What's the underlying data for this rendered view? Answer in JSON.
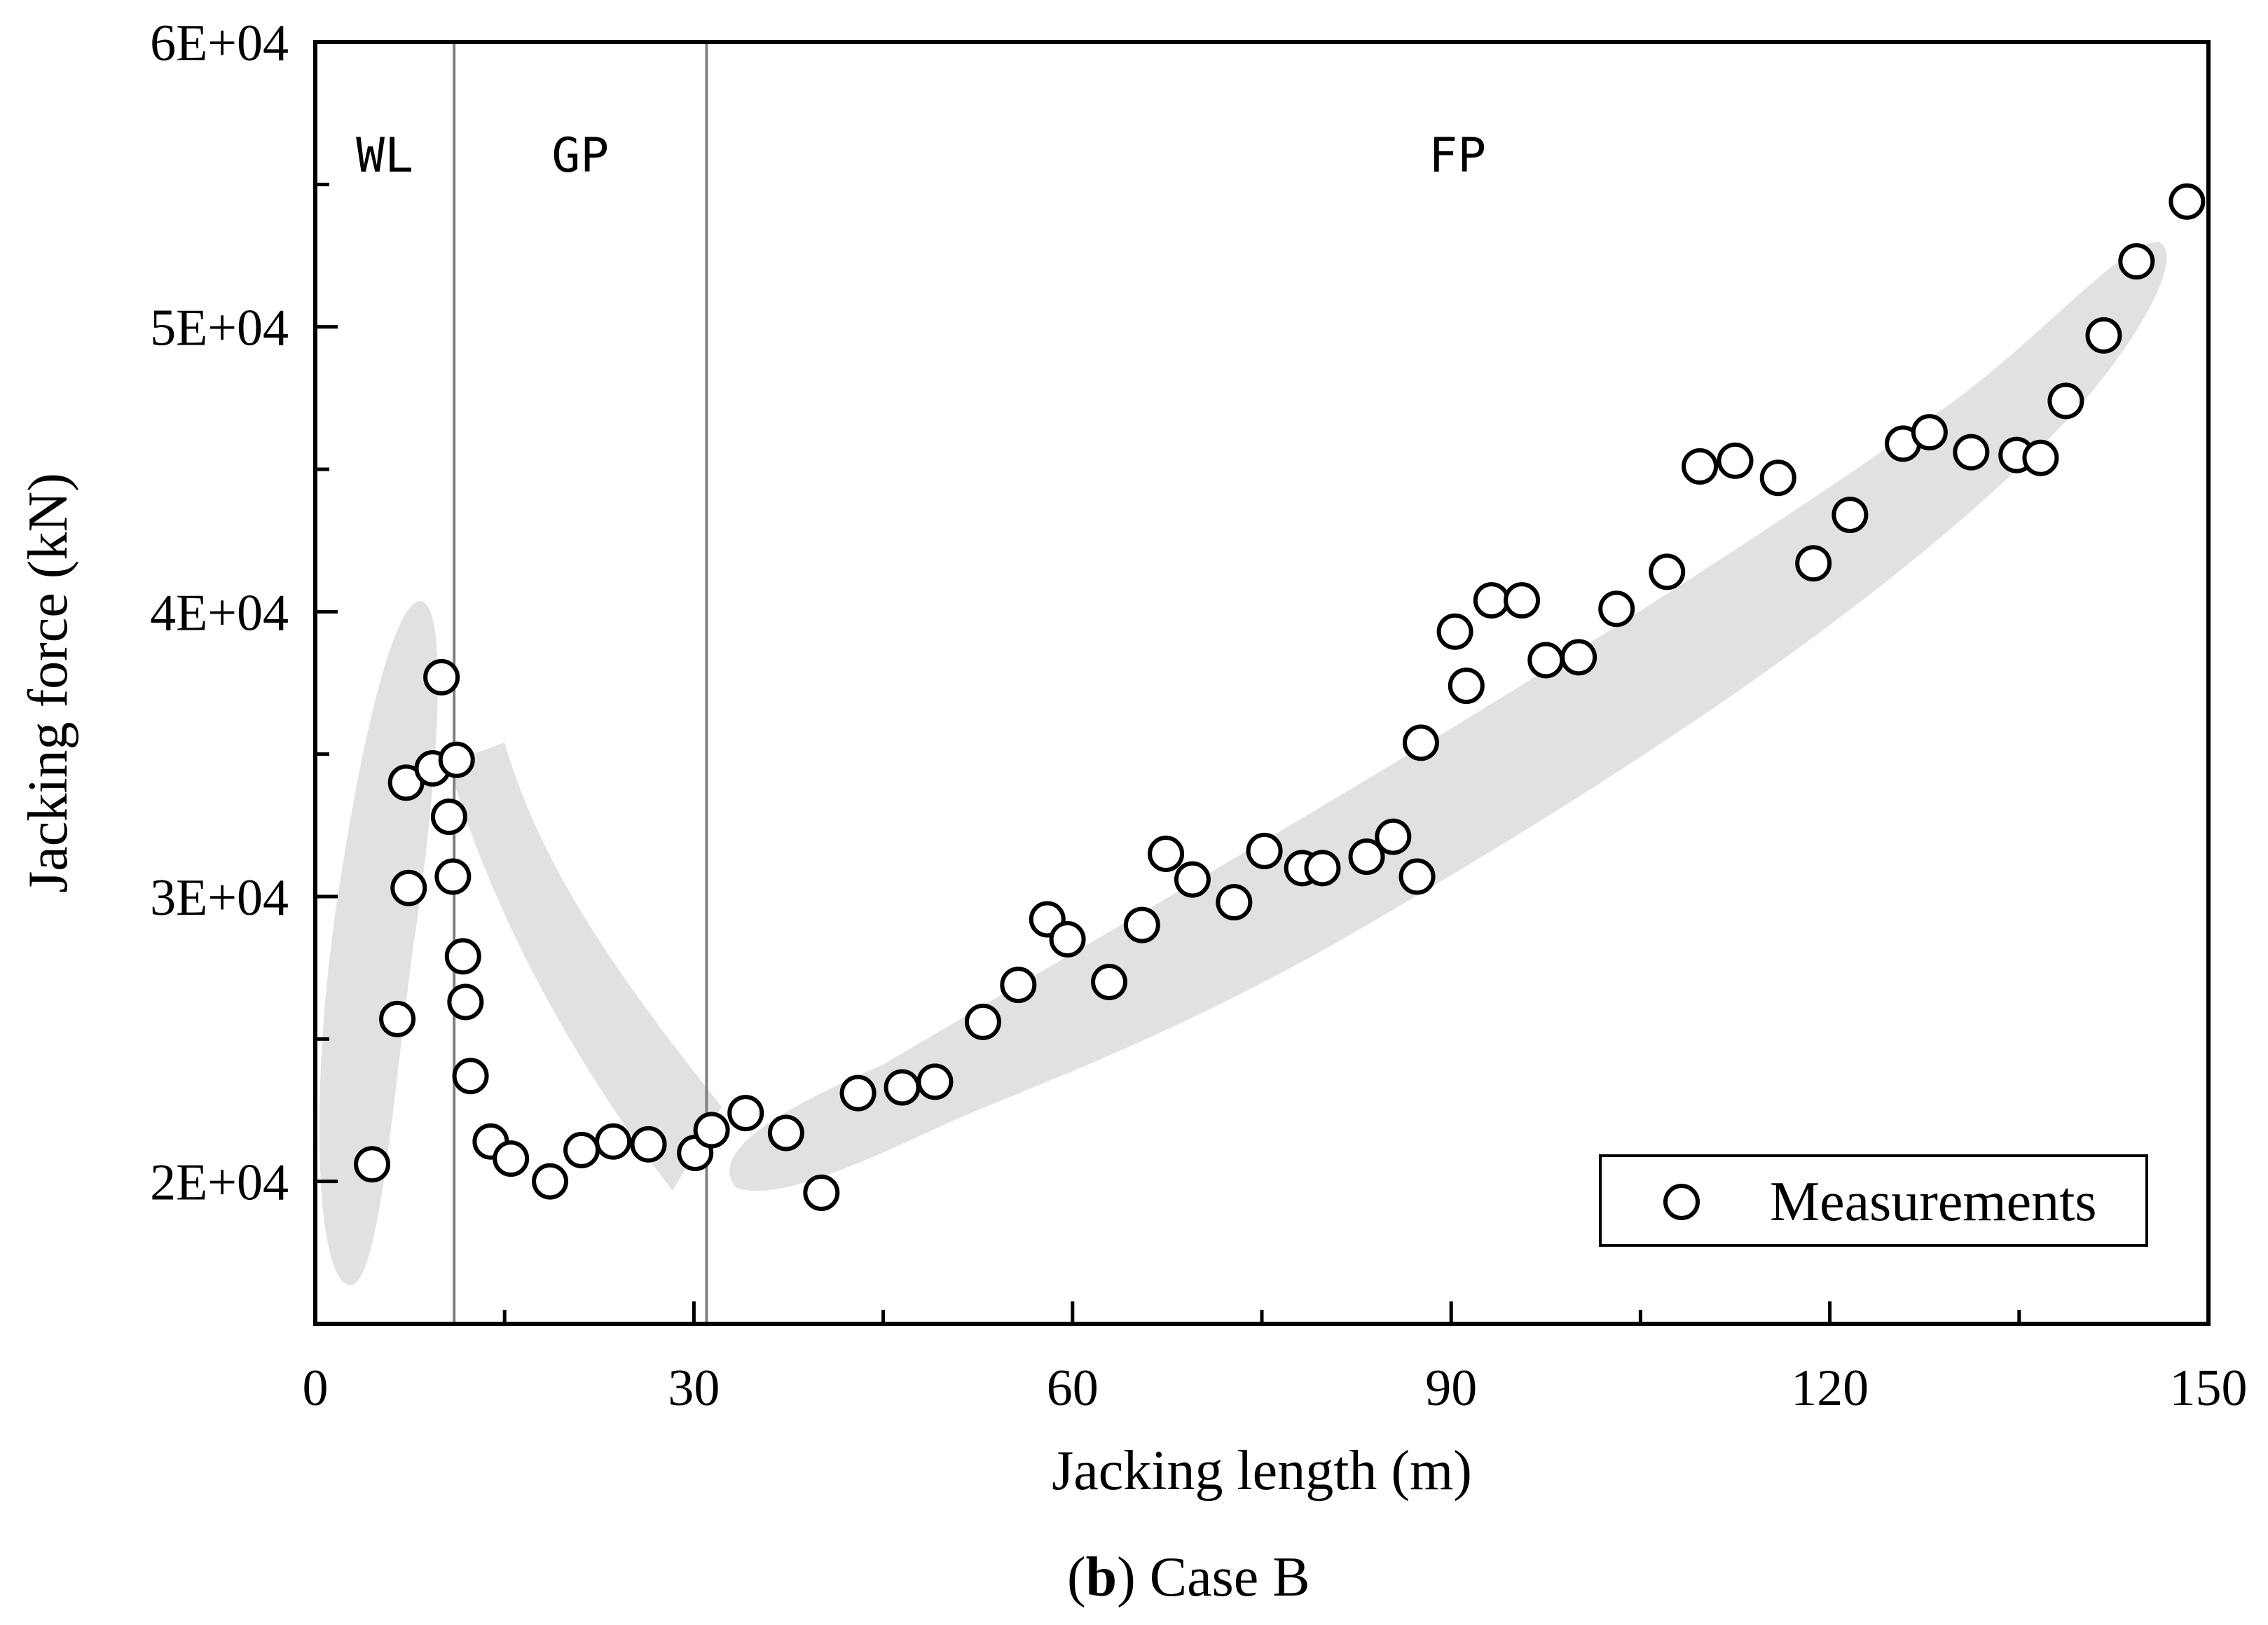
{
  "chart_data": {
    "type": "scatter",
    "title": "",
    "xlabel": "Jacking length (m)",
    "ylabel": "Jacking force (kN)",
    "xlim": [
      0,
      150
    ],
    "ylim": [
      15000,
      60000
    ],
    "x_ticks": [
      0,
      30,
      60,
      90,
      120,
      150
    ],
    "x_tick_labels": [
      "0",
      "30",
      "60",
      "90",
      "120",
      "150"
    ],
    "y_ticks": [
      20000,
      30000,
      40000,
      50000,
      60000
    ],
    "y_tick_labels": [
      "2E+04",
      "3E+04",
      "4E+04",
      "5E+04",
      "6E+04"
    ],
    "grid": false,
    "legend": {
      "position": "bottom-right",
      "entries": [
        "Measurements"
      ]
    },
    "regions": [
      {
        "label": "WL",
        "x_start": 0,
        "x_end": 11
      },
      {
        "label": "GP",
        "x_start": 11,
        "x_end": 31
      },
      {
        "label": "FP",
        "x_start": 31,
        "x_end": 150
      }
    ],
    "region_boundaries": [
      11,
      31
    ],
    "series": [
      {
        "name": "Measurements",
        "points": [
          [
            4.5,
            20600
          ],
          [
            6.5,
            25700
          ],
          [
            7.2,
            34000
          ],
          [
            7.4,
            30300
          ],
          [
            9.3,
            34500
          ],
          [
            10.0,
            37700
          ],
          [
            10.6,
            32800
          ],
          [
            10.9,
            30700
          ],
          [
            11.2,
            34800
          ],
          [
            11.7,
            27900
          ],
          [
            11.9,
            26300
          ],
          [
            12.3,
            23700
          ],
          [
            13.9,
            21400
          ],
          [
            15.5,
            20800
          ],
          [
            18.6,
            20000
          ],
          [
            21.1,
            21100
          ],
          [
            23.6,
            21400
          ],
          [
            26.4,
            21300
          ],
          [
            30.1,
            21000
          ],
          [
            31.4,
            21800
          ],
          [
            34.1,
            22400
          ],
          [
            37.3,
            21700
          ],
          [
            40.1,
            19600
          ],
          [
            43.0,
            23100
          ],
          [
            46.5,
            23300
          ],
          [
            49.1,
            23500
          ],
          [
            52.9,
            25600
          ],
          [
            55.7,
            26900
          ],
          [
            58.0,
            29200
          ],
          [
            59.6,
            28500
          ],
          [
            62.9,
            27000
          ],
          [
            65.5,
            29000
          ],
          [
            67.4,
            31500
          ],
          [
            69.5,
            30600
          ],
          [
            72.8,
            29800
          ],
          [
            75.2,
            31600
          ],
          [
            78.2,
            31000
          ],
          [
            79.8,
            31000
          ],
          [
            83.3,
            31400
          ],
          [
            85.4,
            32100
          ],
          [
            87.3,
            30700
          ],
          [
            87.6,
            35400
          ],
          [
            90.3,
            39300
          ],
          [
            91.2,
            37400
          ],
          [
            93.2,
            40400
          ],
          [
            95.6,
            40400
          ],
          [
            97.5,
            38300
          ],
          [
            100.1,
            38400
          ],
          [
            103.1,
            40100
          ],
          [
            107.1,
            41400
          ],
          [
            109.7,
            45100
          ],
          [
            112.5,
            45300
          ],
          [
            115.9,
            44700
          ],
          [
            118.7,
            41700
          ],
          [
            121.6,
            43400
          ],
          [
            125.8,
            45900
          ],
          [
            127.9,
            46300
          ],
          [
            131.2,
            45600
          ],
          [
            134.8,
            45500
          ],
          [
            136.7,
            45400
          ],
          [
            138.7,
            47400
          ],
          [
            141.7,
            49700
          ],
          [
            144.3,
            52300
          ],
          [
            148.3,
            54400
          ]
        ]
      }
    ],
    "caption_label": "b",
    "caption_text": ") Case B",
    "caption_prefix": "("
  }
}
